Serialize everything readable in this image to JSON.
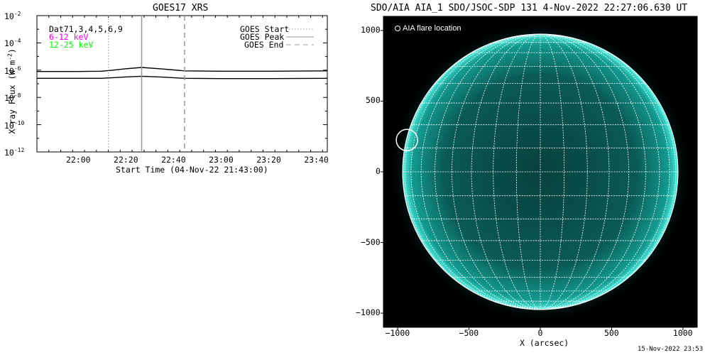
{
  "chart_data": [
    {
      "type": "line",
      "title": "GOES17 XRS",
      "xlabel": "Start Time (04-Nov-22 21:43:00)",
      "ylabel": "X-ray Flux (W m^-2)",
      "ylabel_main": "X-ray Flux (W m",
      "ylabel_exp": "-2",
      "ylabel_close": ")",
      "y_scale": "log",
      "ylim_exponent": [
        -12,
        -2
      ],
      "xlim": [
        "21:43",
        "23:45"
      ],
      "x_ticks": [
        "22:00",
        "22:20",
        "22:40",
        "23:00",
        "23:20",
        "23:40"
      ],
      "y_tick_base": "10",
      "y_ticks": [
        {
          "exp": "-12",
          "value": -12
        },
        {
          "exp": "-10",
          "value": -10
        },
        {
          "exp": "-8",
          "value": -8
        },
        {
          "exp": "-6",
          "value": -6
        },
        {
          "exp": "-4",
          "value": -4
        },
        {
          "exp": "-2",
          "value": -2
        }
      ],
      "series": [
        {
          "name": "6-12 keV",
          "color": "#ff00ff",
          "x": [
            "21:43",
            "22:00",
            "22:10",
            "22:15",
            "22:20",
            "22:27",
            "22:35",
            "22:45",
            "23:00",
            "23:20",
            "23:45"
          ],
          "log_values": [
            -6.1,
            -6.1,
            -6.08,
            -6.0,
            -5.9,
            -5.8,
            -5.9,
            -6.05,
            -6.08,
            -6.08,
            -6.05
          ]
        },
        {
          "name": "12-25 keV",
          "color": "#00ff00",
          "x": [
            "21:43",
            "22:00",
            "22:10",
            "22:15",
            "22:20",
            "22:27",
            "22:35",
            "22:45",
            "23:00",
            "23:20",
            "23:45"
          ],
          "log_values": [
            -6.6,
            -6.6,
            -6.6,
            -6.55,
            -6.5,
            -6.45,
            -6.5,
            -6.6,
            -6.62,
            -6.62,
            -6.6
          ]
        }
      ],
      "legend_left": {
        "header": "Dat71,3,4,5,6,9",
        "items": [
          {
            "label": "6-12 keV",
            "color": "#ff00ff"
          },
          {
            "label": "12-25 keV",
            "color": "#00ff00"
          }
        ]
      },
      "legend_right": [
        {
          "label": "GOES Start",
          "style": "dotted"
        },
        {
          "label": "GOES Peak",
          "style": "solid"
        },
        {
          "label": "GOES End",
          "style": "dashed"
        }
      ],
      "markers": {
        "start": "22:13",
        "peak": "22:27",
        "end": "22:45"
      }
    },
    {
      "type": "scatter",
      "title": "SDO/AIA AIA_1 SDO/JSOC-SDP 131  4-Nov-2022 22:27:06.630 UT",
      "xlabel": "X (arcsec)",
      "ylabel": "",
      "xlim": [
        -1100,
        1100
      ],
      "ylim": [
        -1100,
        1100
      ],
      "x_ticks": [
        -1000,
        -500,
        0,
        500,
        1000
      ],
      "y_ticks": [
        -1000,
        -500,
        0,
        500,
        1000
      ],
      "x_tick_labels": [
        "−1000",
        "−500",
        "0",
        "500",
        "1000"
      ],
      "y_tick_labels": [
        "−1000",
        "−500",
        "0",
        "500",
        "1000"
      ],
      "legend": "AIA flare location",
      "solar_radius": 965,
      "flare_location": {
        "x": -935,
        "y": 225
      },
      "grid_spacing_deg": 10,
      "colors": {
        "disk": "#0b6f6a",
        "limb": "#4cf0e0",
        "background": "#000000"
      }
    }
  ],
  "footer_timestamp": "15-Nov-2022 23:53"
}
